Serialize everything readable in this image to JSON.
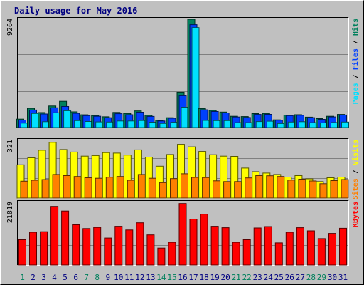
{
  "title": "Daily usage for May 2016",
  "colors": {
    "background": "#c0c0c0",
    "hits": "#00805c",
    "files": "#0040ff",
    "pages": "#00e0ff",
    "visits": "#ffff00",
    "sites": "#ff8000",
    "kbytes": "#ff0000",
    "weekend_label": "#00805c",
    "weekday_label": "#000080"
  },
  "chart_data": [
    {
      "type": "bar",
      "panel": "hits-files-pages",
      "ymax_label": "9264",
      "ylim": [
        0,
        9264
      ],
      "legend": [
        {
          "key": "pages",
          "text": "Pages"
        },
        {
          "key": "sep",
          "text": " / "
        },
        {
          "key": "files",
          "text": "Files"
        },
        {
          "key": "sep",
          "text": " / "
        },
        {
          "key": "hits",
          "text": "Hits"
        }
      ],
      "categories": [
        "1",
        "2",
        "3",
        "4",
        "5",
        "6",
        "7",
        "8",
        "9",
        "10",
        "11",
        "12",
        "13",
        "14",
        "15",
        "16",
        "17",
        "18",
        "19",
        "20",
        "21",
        "22",
        "23",
        "24",
        "25",
        "26",
        "27",
        "28",
        "29",
        "30",
        "31"
      ],
      "weekend_days": [
        "1",
        "7",
        "8",
        "14",
        "15",
        "21",
        "22",
        "28",
        "29"
      ],
      "series": [
        {
          "name": "Hits",
          "key": "hits",
          "values": [
            720,
            1640,
            1280,
            1840,
            2240,
            1340,
            1090,
            1020,
            920,
            1290,
            1200,
            1420,
            1040,
            610,
            840,
            3020,
            9264,
            1620,
            1460,
            1320,
            960,
            940,
            1190,
            1200,
            660,
            1060,
            1100,
            890,
            760,
            960,
            1120
          ]
        },
        {
          "name": "Files",
          "key": "files",
          "values": [
            640,
            1500,
            1160,
            1690,
            1800,
            1210,
            1020,
            960,
            840,
            1180,
            1100,
            1310,
            950,
            560,
            790,
            2720,
            8800,
            1520,
            1370,
            1250,
            900,
            860,
            1120,
            1130,
            630,
            1020,
            1050,
            850,
            700,
            910,
            1070
          ]
        },
        {
          "name": "Pages",
          "key": "pages",
          "values": [
            380,
            1200,
            500,
            1260,
            1440,
            590,
            520,
            480,
            470,
            560,
            560,
            600,
            460,
            350,
            450,
            1740,
            8550,
            610,
            590,
            590,
            420,
            420,
            510,
            540,
            340,
            470,
            500,
            420,
            400,
            430,
            470
          ]
        }
      ]
    },
    {
      "type": "bar",
      "panel": "visits-sites",
      "ymax_label": "321",
      "ylim": [
        0,
        321
      ],
      "legend": [
        {
          "key": "sites",
          "text": "Sites"
        },
        {
          "key": "sep",
          "text": " / "
        },
        {
          "key": "visits",
          "text": "Visits"
        }
      ],
      "categories": [
        "1",
        "2",
        "3",
        "4",
        "5",
        "6",
        "7",
        "8",
        "9",
        "10",
        "11",
        "12",
        "13",
        "14",
        "15",
        "16",
        "17",
        "18",
        "19",
        "20",
        "21",
        "22",
        "23",
        "24",
        "25",
        "26",
        "27",
        "28",
        "29",
        "30",
        "31"
      ],
      "series": [
        {
          "name": "Visits",
          "key": "visits",
          "values": [
            185,
            224,
            266,
            310,
            270,
            256,
            233,
            236,
            253,
            250,
            239,
            268,
            228,
            177,
            242,
            299,
            285,
            259,
            241,
            233,
            232,
            167,
            147,
            139,
            131,
            117,
            125,
            107,
            92,
            113,
            117
          ]
        },
        {
          "name": "Sites",
          "key": "sites",
          "values": [
            94,
            99,
            103,
            131,
            125,
            120,
            113,
            110,
            116,
            120,
            99,
            131,
            110,
            86,
            108,
            135,
            115,
            114,
            96,
            92,
            92,
            112,
            125,
            124,
            120,
            100,
            105,
            95,
            80,
            97,
            103
          ]
        }
      ]
    },
    {
      "type": "bar",
      "panel": "kbytes",
      "ymax_label": "21819",
      "ylim": [
        0,
        21819
      ],
      "legend": [
        {
          "key": "kbytes",
          "text": "KBytes"
        }
      ],
      "categories": [
        "1",
        "2",
        "3",
        "4",
        "5",
        "6",
        "7",
        "8",
        "9",
        "10",
        "11",
        "12",
        "13",
        "14",
        "15",
        "16",
        "17",
        "18",
        "19",
        "20",
        "21",
        "22",
        "23",
        "24",
        "25",
        "26",
        "27",
        "28",
        "29",
        "30",
        "31"
      ],
      "series": [
        {
          "name": "KBytes",
          "key": "kbytes",
          "values": [
            8800,
            11400,
            11600,
            20400,
            18800,
            14000,
            12700,
            13100,
            9400,
            13500,
            12200,
            14700,
            10500,
            5900,
            7900,
            21400,
            16000,
            17700,
            13500,
            13000,
            7900,
            8800,
            12900,
            13400,
            7700,
            11400,
            13000,
            11900,
            9200,
            11000,
            12800
          ]
        }
      ]
    }
  ]
}
